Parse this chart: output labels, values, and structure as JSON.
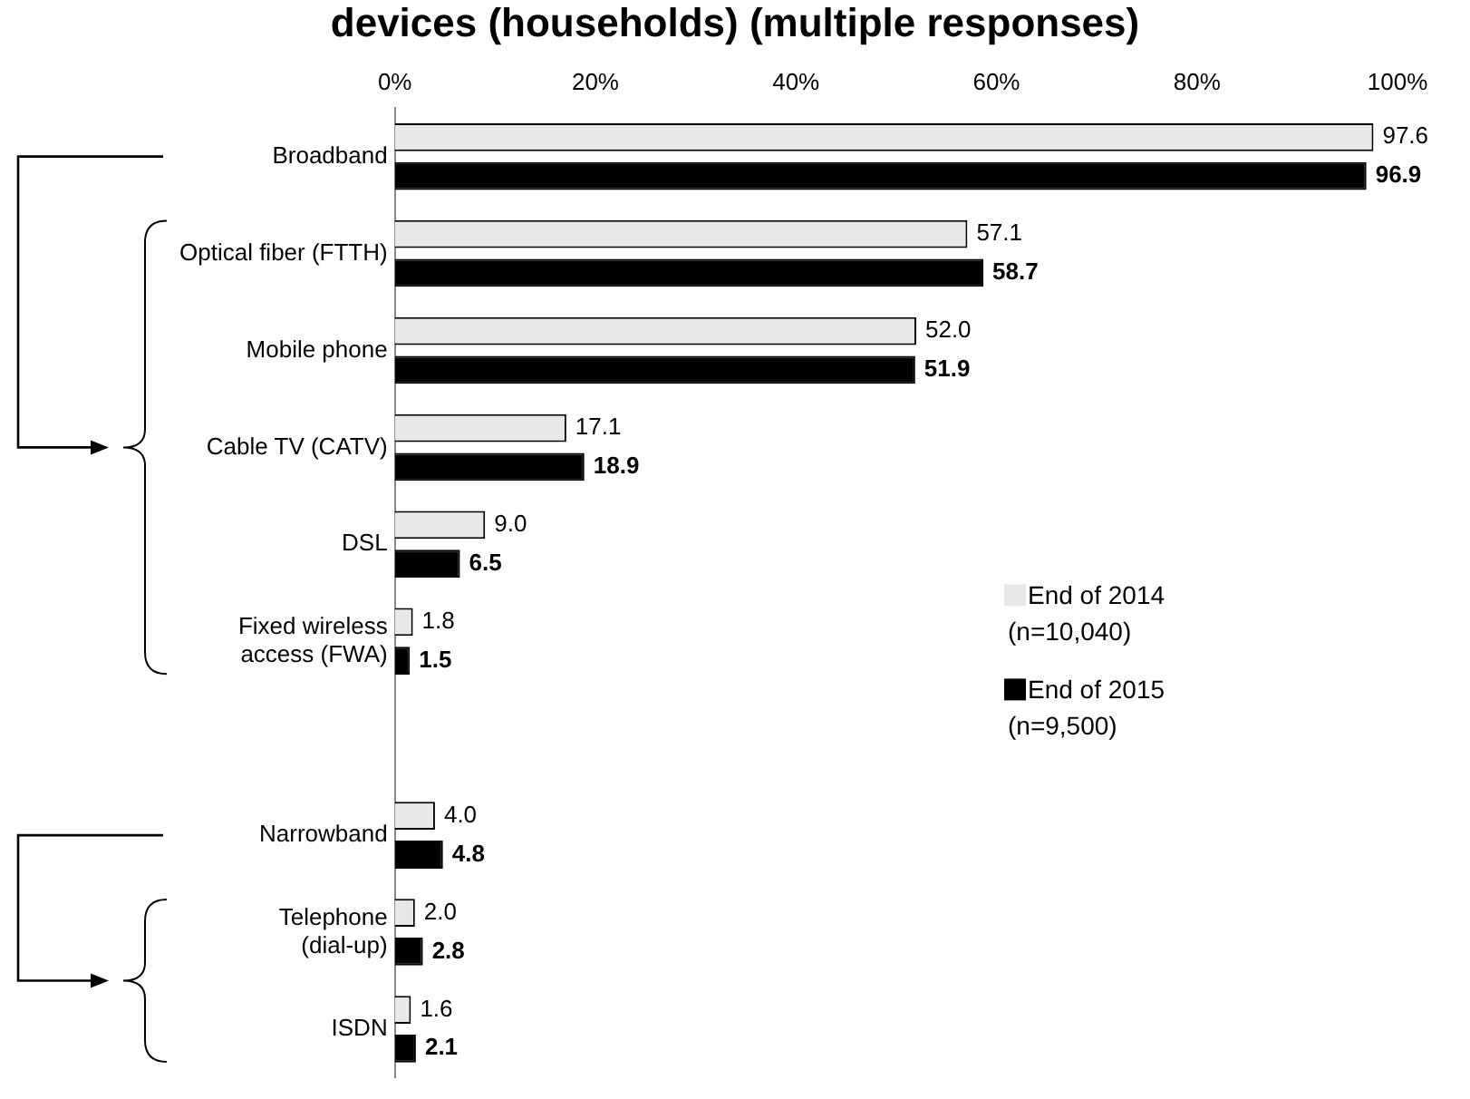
{
  "chart_data": {
    "type": "bar",
    "orientation": "horizontal",
    "title": "devices (households) (multiple responses)",
    "categories": [
      "Broadband",
      "Optical fiber (FTTH)",
      "Mobile phone",
      "Cable TV (CATV)",
      "DSL",
      "Fixed wireless\naccess (FWA)",
      null,
      "Narrowband",
      "Telephone\n(dial-up)",
      "ISDN"
    ],
    "series": [
      {
        "name": "End of 2014\n(n=10,040)",
        "color": "#e8e8e8",
        "values": [
          97.6,
          57.1,
          52.0,
          17.1,
          9.0,
          1.8,
          null,
          4.0,
          2.0,
          1.6
        ],
        "value_labels": [
          "97.6",
          "57.1",
          "52.0",
          "17.1",
          "9.0",
          "1.8",
          null,
          "4.0",
          "2.0",
          "1.6"
        ]
      },
      {
        "name": "End of 2015\n(n=9,500)",
        "color": "#000000",
        "values": [
          96.9,
          58.7,
          51.9,
          18.9,
          6.5,
          1.5,
          null,
          4.8,
          2.8,
          2.1
        ],
        "value_labels": [
          "96.9",
          "58.7",
          "51.9",
          "18.9",
          "6.5",
          "1.5",
          null,
          "4.8",
          "2.8",
          "2.1"
        ]
      }
    ],
    "xlim": [
      0,
      100
    ],
    "xticks": [
      {
        "value": 0,
        "label": "0%"
      },
      {
        "value": 20,
        "label": "20%"
      },
      {
        "value": 40,
        "label": "40%"
      },
      {
        "value": 60,
        "label": "60%"
      },
      {
        "value": 80,
        "label": "80%"
      },
      {
        "value": 100,
        "label": "100%"
      }
    ],
    "grid": false,
    "legend": "bottom right"
  }
}
